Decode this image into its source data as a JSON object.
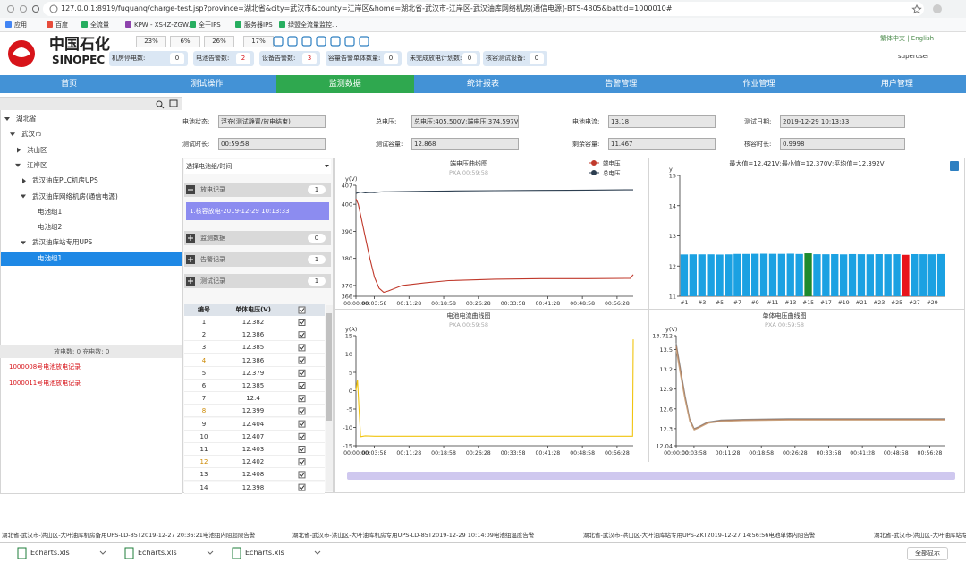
{
  "browser": {
    "url": "127.0.0.1:8919/fuquanq/charge-test.jsp?province=湖北省&city=武汉市&county=江岸区&home=湖北省-武汉市-江岸区-武汉油库网络机房(通信电源)-BTS-4805&battid=1000010#",
    "bookmarks": [
      "应用",
      "百度",
      "全流量",
      "KPW - XS-IZ-ZGW...",
      "全干IPS",
      "服务器IPS",
      "绿盟全流量监控..."
    ]
  },
  "header": {
    "logo_cn": "中国石化",
    "logo_en": "SINOPEC",
    "percents": [
      "23%",
      "6%",
      "26%",
      "17%"
    ],
    "stats": [
      {
        "label": "机房停电数:",
        "value": 0
      },
      {
        "label": "电池告警数:",
        "value": 2
      },
      {
        "label": "设备告警数:",
        "value": 3
      },
      {
        "label": "容量告警单体数量:",
        "value": 0
      },
      {
        "label": "未完成放电计划数:",
        "value": 0
      },
      {
        "label": "核容测试设备:",
        "value": 0
      }
    ],
    "language": "繁体中文 | English",
    "user": "superuser"
  },
  "nav": [
    {
      "label": "首页"
    },
    {
      "label": "测试操作"
    },
    {
      "label": "监测数据",
      "active": true
    },
    {
      "label": "统计报表"
    },
    {
      "label": "告警管理"
    },
    {
      "label": "作业管理"
    },
    {
      "label": "用户管理"
    }
  ],
  "tree": [
    {
      "label": "湖北省",
      "depth": 0,
      "expanded": true
    },
    {
      "label": "武汉市",
      "depth": 1,
      "expanded": true
    },
    {
      "label": "洪山区",
      "depth": 2,
      "expanded": false
    },
    {
      "label": "江岸区",
      "depth": 2,
      "expanded": true
    },
    {
      "label": "武汉油库PLC机房UPS",
      "depth": 3,
      "expanded": false
    },
    {
      "label": "武汉油库网络机房(通信电源)",
      "depth": 3,
      "expanded": true
    },
    {
      "label": "电池组1",
      "depth": 4
    },
    {
      "label": "电池组2",
      "depth": 4
    },
    {
      "label": "武汉油库站专用UPS",
      "depth": 3,
      "expanded": true
    },
    {
      "label": "电池组1",
      "depth": 4,
      "selected": true
    }
  ],
  "sidebar": {
    "counts": "放电数: 0  充电数: 0",
    "records": [
      "1000008号电池放电记录",
      "1000011号电池放电记录"
    ]
  },
  "info": [
    {
      "label": "电池状态:",
      "value": "浮充(测试静置/放电结束)"
    },
    {
      "label": "总电压:",
      "value": "总电压:405.500V;端电压:374.597V"
    },
    {
      "label": "电池电流:",
      "value": "13.18"
    },
    {
      "label": "测试日期:",
      "value": "2019-12-29 10:13:33"
    },
    {
      "label": "测试时长:",
      "value": "00:59:58"
    },
    {
      "label": "测试容量:",
      "value": "12.868"
    },
    {
      "label": "剩余容量:",
      "value": "11.467"
    },
    {
      "label": "核容时长:",
      "value": "0.9998"
    }
  ],
  "panel": {
    "select": "选择电池组/时间",
    "sections": [
      {
        "title": "放电记录",
        "count": 1,
        "items": [
          "1.核容放电-2019-12-29 10:13:33"
        ]
      },
      {
        "title": "监测数据",
        "count": 0
      },
      {
        "title": "告警记录",
        "count": 1
      },
      {
        "title": "测试记录",
        "count": 1
      }
    ]
  },
  "table": {
    "columns": [
      "编号",
      "单体电压(V)"
    ],
    "rows": [
      [
        1,
        12.382
      ],
      [
        2,
        12.386
      ],
      [
        3,
        12.385
      ],
      [
        4,
        12.386
      ],
      [
        5,
        12.379
      ],
      [
        6,
        12.385
      ],
      [
        7,
        12.4
      ],
      [
        8,
        12.399
      ],
      [
        9,
        12.404
      ],
      [
        10,
        12.407
      ],
      [
        11,
        12.403
      ],
      [
        12,
        12.402
      ],
      [
        13,
        12.408
      ],
      [
        14,
        12.398
      ]
    ]
  },
  "ticker": [
    "湖北省-武汉市-洪山区-大叶油库机房备用UPS-LD-85T2019-12-27 20:36:21电池组内阻超限告警",
    "湖北省-武汉市-洪山区-大叶油库机房专用UPS-LD-85T2019-12-29 10:14:09电池组温度告警",
    "湖北省-武汉市-洪山区-大叶油库站专用UPS-ZKT2019-12-27 14:56:56电池单体内阻告警",
    "湖北省-武汉市-洪山区-大叶油库站专用UPS-Z"
  ],
  "downloads": [
    "Echarts.xls",
    "Echarts.xls",
    "Echarts.xls"
  ],
  "show_all": "全部显示",
  "chart_data": [
    {
      "type": "line",
      "title": "端电压曲线图",
      "subtitle": "PXA 00:59:58",
      "y_label": "y(V)",
      "legend": "top-right",
      "x": [
        0,
        30,
        60,
        120,
        180,
        240,
        300,
        360,
        420,
        600,
        900,
        1200,
        1800,
        2400,
        3000,
        3500,
        3560,
        3598
      ],
      "xlim": [
        0,
        3598
      ],
      "xticks": [
        {
          "value": 0,
          "label": "00:00:00"
        },
        {
          "value": 238,
          "label": "00:03:58"
        },
        {
          "value": 688,
          "label": "00:11:28"
        },
        {
          "value": 1138,
          "label": "00:18:58"
        },
        {
          "value": 1588,
          "label": "00:26:28"
        },
        {
          "value": 2038,
          "label": "00:33:58"
        },
        {
          "value": 2488,
          "label": "00:41:28"
        },
        {
          "value": 2938,
          "label": "00:48:58"
        },
        {
          "value": 3388,
          "label": "00:56:28"
        }
      ],
      "ylim": [
        366,
        407
      ],
      "yticks": [
        366,
        370,
        380,
        390,
        400,
        407
      ],
      "series": [
        {
          "name": "端电压",
          "color": "#c0392b",
          "values": [
            402,
            400,
            396,
            388,
            380,
            373,
            369,
            367.5,
            368,
            370,
            371,
            371.8,
            372.3,
            372.5,
            372.5,
            372.6,
            372.6,
            374
          ]
        },
        {
          "name": "总电压",
          "color": "#2c3e50",
          "values": [
            404,
            404.3,
            404.5,
            404.2,
            404.4,
            404.3,
            404.5,
            404.6,
            404.6,
            404.7,
            404.8,
            404.9,
            405,
            405.1,
            405.2,
            405.3,
            405.3,
            405.3
          ]
        }
      ]
    },
    {
      "type": "bar",
      "title": "最大值=12.421V;最小值=12.370V;平均值=12.392V",
      "y_label": "y",
      "categories": [
        "#1",
        null,
        "#3",
        null,
        "#5",
        null,
        "#7",
        null,
        "#9",
        null,
        "#11",
        null,
        "#13",
        null,
        "#15",
        null,
        "#17",
        null,
        "#19",
        null,
        "#21",
        null,
        "#23",
        null,
        "#25",
        null,
        "#27",
        null,
        "#29",
        null
      ],
      "values": [
        12.382,
        12.386,
        12.385,
        12.386,
        12.379,
        12.385,
        12.4,
        12.399,
        12.404,
        12.407,
        12.403,
        12.402,
        12.408,
        12.398,
        12.421,
        12.39,
        12.388,
        12.392,
        12.385,
        12.394,
        12.39,
        12.387,
        12.392,
        12.389,
        12.391,
        12.37,
        12.393,
        12.39,
        12.388,
        12.395
      ],
      "colors": [
        "#1ba1e2",
        "#1ba1e2",
        "#1ba1e2",
        "#1ba1e2",
        "#1ba1e2",
        "#1ba1e2",
        "#1ba1e2",
        "#1ba1e2",
        "#1ba1e2",
        "#1ba1e2",
        "#1ba1e2",
        "#1ba1e2",
        "#1ba1e2",
        "#1ba1e2",
        "#1e8a2e",
        "#1ba1e2",
        "#1ba1e2",
        "#1ba1e2",
        "#1ba1e2",
        "#1ba1e2",
        "#1ba1e2",
        "#1ba1e2",
        "#1ba1e2",
        "#1ba1e2",
        "#1ba1e2",
        "#e8141b",
        "#1ba1e2",
        "#1ba1e2",
        "#1ba1e2",
        "#1ba1e2"
      ],
      "ylim": [
        11,
        15
      ],
      "yticks": [
        11,
        12,
        13,
        14,
        15
      ]
    },
    {
      "type": "line",
      "title": "电池电流曲线图",
      "subtitle": "PXA 00:59:58",
      "y_label": "y(A)",
      "x": [
        0,
        20,
        40,
        60,
        120,
        240,
        600,
        1200,
        2400,
        3500,
        3590,
        3598
      ],
      "xlim": [
        0,
        3598
      ],
      "xticks": [
        {
          "value": 0,
          "label": "00:00:00"
        },
        {
          "value": 238,
          "label": "00:03:58"
        },
        {
          "value": 688,
          "label": "00:11:28"
        },
        {
          "value": 1138,
          "label": "00:18:58"
        },
        {
          "value": 1588,
          "label": "00:26:28"
        },
        {
          "value": 2038,
          "label": "00:33:58"
        },
        {
          "value": 2488,
          "label": "00:41:28"
        },
        {
          "value": 2938,
          "label": "00:48:58"
        },
        {
          "value": 3388,
          "label": "00:56:28"
        }
      ],
      "ylim": [
        -15,
        15
      ],
      "yticks": [
        -15,
        -10,
        -5,
        0,
        5,
        10,
        15
      ],
      "series": [
        {
          "color": "#f1c40f",
          "values": [
            0,
            3,
            -5,
            -12.5,
            -12.3,
            -12.4,
            -12.4,
            -12.4,
            -12.4,
            -12.4,
            -12.4,
            14
          ]
        }
      ]
    },
    {
      "type": "line",
      "title": "单体电压曲线图",
      "subtitle": "PXA 00:59:58",
      "y_label": "y(V)",
      "x": [
        0,
        60,
        120,
        180,
        240,
        300,
        420,
        600,
        900,
        1500,
        2400,
        3598
      ],
      "xlim": [
        0,
        3598
      ],
      "xticks": [
        {
          "value": 0,
          "label": "00:00:00"
        },
        {
          "value": 238,
          "label": "00:03:58"
        },
        {
          "value": 688,
          "label": "00:11:28"
        },
        {
          "value": 1138,
          "label": "00:18:58"
        },
        {
          "value": 1588,
          "label": "00:26:28"
        },
        {
          "value": 2038,
          "label": "00:33:58"
        },
        {
          "value": 2488,
          "label": "00:41:28"
        },
        {
          "value": 2938,
          "label": "00:48:58"
        },
        {
          "value": 3388,
          "label": "00:56:28"
        }
      ],
      "ylim": [
        12.04,
        13.712
      ],
      "yticks": [
        12.04,
        12.3,
        12.6,
        12.9,
        13.2,
        13.5,
        13.712
      ],
      "series": [
        {
          "color": "#8d8d8d",
          "values": [
            13.6,
            13.2,
            12.8,
            12.45,
            12.3,
            12.33,
            12.4,
            12.43,
            12.44,
            12.45,
            12.45,
            12.45
          ]
        },
        {
          "color": "#b07b5a",
          "values": [
            13.55,
            13.15,
            12.76,
            12.43,
            12.29,
            12.32,
            12.39,
            12.42,
            12.43,
            12.44,
            12.44,
            12.44
          ]
        },
        {
          "color": "#c9a27e",
          "values": [
            13.5,
            13.1,
            12.73,
            12.41,
            12.28,
            12.31,
            12.38,
            12.41,
            12.42,
            12.43,
            12.43,
            12.43
          ]
        }
      ]
    }
  ]
}
